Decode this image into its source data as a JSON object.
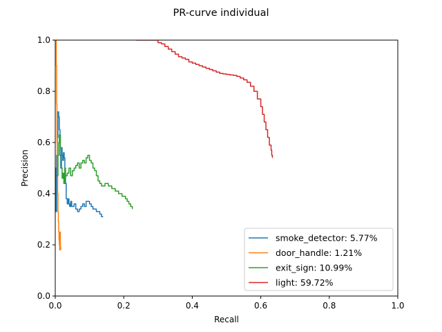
{
  "chart_data": {
    "type": "line",
    "title": "PR-curve individual",
    "xlabel": "Recall",
    "ylabel": "Precision",
    "xlim": [
      0,
      1
    ],
    "ylim": [
      0,
      1
    ],
    "xticks": [
      "0.0",
      "0.2",
      "0.4",
      "0.6",
      "0.8",
      "1.0"
    ],
    "yticks": [
      "0.0",
      "0.2",
      "0.4",
      "0.6",
      "0.8",
      "1.0"
    ],
    "grid": false,
    "legend_position": "lower-right",
    "series": [
      {
        "name": "smoke_detector: 5.77%",
        "color": "#1f77b4",
        "x": [
          0.0,
          0.002,
          0.004,
          0.006,
          0.008,
          0.01,
          0.012,
          0.014,
          0.016,
          0.018,
          0.02,
          0.022,
          0.024,
          0.026,
          0.028,
          0.03,
          0.032,
          0.035,
          0.038,
          0.04,
          0.042,
          0.045,
          0.048,
          0.05,
          0.055,
          0.06,
          0.065,
          0.07,
          0.075,
          0.08,
          0.085,
          0.09,
          0.095,
          0.1,
          0.105,
          0.11,
          0.115,
          0.12,
          0.125,
          0.13,
          0.135,
          0.14
        ],
        "y": [
          0.5,
          0.33,
          0.55,
          0.62,
          0.72,
          0.7,
          0.65,
          0.55,
          0.5,
          0.58,
          0.55,
          0.53,
          0.56,
          0.54,
          0.48,
          0.44,
          0.38,
          0.36,
          0.38,
          0.36,
          0.35,
          0.37,
          0.35,
          0.35,
          0.36,
          0.34,
          0.33,
          0.34,
          0.35,
          0.36,
          0.35,
          0.37,
          0.37,
          0.36,
          0.35,
          0.34,
          0.34,
          0.33,
          0.33,
          0.32,
          0.31,
          0.31
        ]
      },
      {
        "name": "door_handle: 1.21%",
        "color": "#ff7f0e",
        "x": [
          0.002,
          0.003,
          0.004,
          0.005,
          0.006,
          0.007,
          0.008,
          0.009,
          0.01,
          0.011,
          0.012,
          0.013,
          0.014,
          0.015,
          0.016
        ],
        "y": [
          1.0,
          0.9,
          0.75,
          0.6,
          0.5,
          0.4,
          0.33,
          0.29,
          0.25,
          0.22,
          0.2,
          0.18,
          0.25,
          0.19,
          0.18
        ]
      },
      {
        "name": "exit_sign: 10.99%",
        "color": "#2ca02c",
        "x": [
          0.005,
          0.008,
          0.01,
          0.012,
          0.015,
          0.018,
          0.02,
          0.022,
          0.025,
          0.028,
          0.03,
          0.035,
          0.04,
          0.045,
          0.05,
          0.055,
          0.06,
          0.065,
          0.07,
          0.075,
          0.08,
          0.085,
          0.09,
          0.095,
          0.1,
          0.105,
          0.11,
          0.115,
          0.12,
          0.125,
          0.13,
          0.135,
          0.14,
          0.145,
          0.15,
          0.155,
          0.16,
          0.165,
          0.17,
          0.175,
          0.18,
          0.185,
          0.19,
          0.195,
          0.2,
          0.205,
          0.21,
          0.215,
          0.22,
          0.225
        ],
        "y": [
          0.47,
          0.55,
          0.6,
          0.63,
          0.58,
          0.5,
          0.46,
          0.48,
          0.44,
          0.5,
          0.47,
          0.48,
          0.5,
          0.47,
          0.49,
          0.5,
          0.51,
          0.52,
          0.5,
          0.52,
          0.53,
          0.52,
          0.54,
          0.55,
          0.53,
          0.52,
          0.5,
          0.49,
          0.47,
          0.45,
          0.44,
          0.43,
          0.43,
          0.44,
          0.44,
          0.43,
          0.43,
          0.42,
          0.42,
          0.41,
          0.41,
          0.4,
          0.4,
          0.39,
          0.39,
          0.38,
          0.37,
          0.36,
          0.35,
          0.34
        ]
      },
      {
        "name": "light: 59.72%",
        "color": "#d62728",
        "x": [
          0.235,
          0.26,
          0.28,
          0.3,
          0.31,
          0.32,
          0.33,
          0.34,
          0.35,
          0.36,
          0.37,
          0.38,
          0.39,
          0.4,
          0.41,
          0.42,
          0.43,
          0.44,
          0.45,
          0.46,
          0.47,
          0.48,
          0.49,
          0.5,
          0.51,
          0.52,
          0.53,
          0.54,
          0.55,
          0.56,
          0.57,
          0.58,
          0.59,
          0.6,
          0.605,
          0.61,
          0.615,
          0.62,
          0.625,
          0.63,
          0.632,
          0.634
        ],
        "y": [
          1.0,
          1.0,
          1.0,
          0.99,
          0.985,
          0.975,
          0.965,
          0.955,
          0.945,
          0.935,
          0.93,
          0.925,
          0.915,
          0.91,
          0.905,
          0.9,
          0.895,
          0.89,
          0.885,
          0.88,
          0.875,
          0.87,
          0.868,
          0.866,
          0.864,
          0.862,
          0.858,
          0.852,
          0.845,
          0.835,
          0.82,
          0.8,
          0.77,
          0.74,
          0.71,
          0.68,
          0.65,
          0.62,
          0.59,
          0.57,
          0.55,
          0.54
        ]
      }
    ]
  }
}
